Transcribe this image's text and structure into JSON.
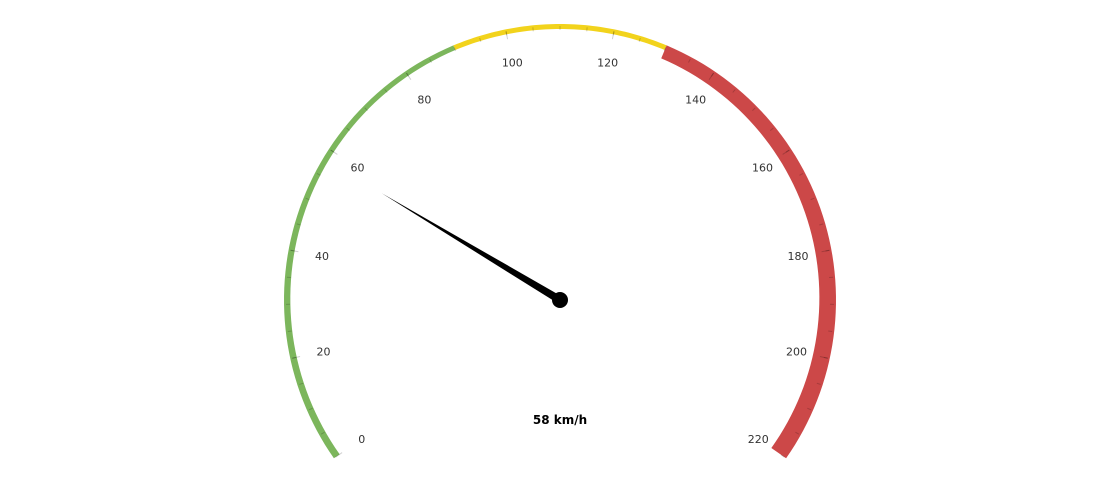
{
  "chart_data": {
    "type": "gauge",
    "value": 58,
    "unit": "km/h",
    "readout": "58 km/h",
    "min": 0,
    "max": 220,
    "major_ticks": [
      0,
      20,
      40,
      60,
      80,
      100,
      120,
      140,
      160,
      180,
      200,
      220
    ],
    "minor_ticks_per_interval": 4,
    "bands": [
      {
        "name": "green",
        "from": 0,
        "to": 90,
        "color": "#7cb65c"
      },
      {
        "name": "yellow",
        "from": 90,
        "to": 130,
        "color": "#f2d31c"
      },
      {
        "name": "red",
        "from": 130,
        "to": 220,
        "color": "#cc4848"
      }
    ],
    "needle_color": "#000000"
  },
  "labels": {
    "readout": "58 km/h"
  }
}
